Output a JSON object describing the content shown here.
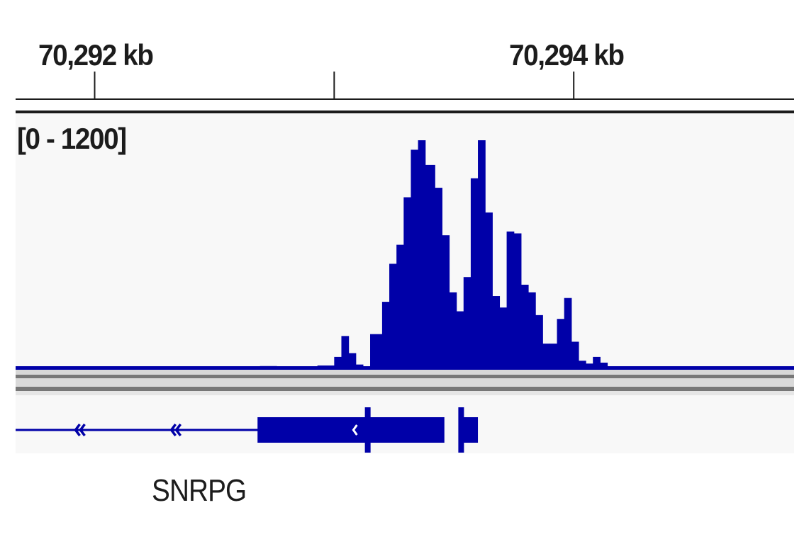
{
  "ruler": {
    "labels": [
      {
        "kb": 70292,
        "text": "70,292 kb"
      },
      {
        "kb": 70294,
        "text": "70,294 kb"
      }
    ],
    "ticks_kb": [
      70292,
      70293,
      70294
    ]
  },
  "track": {
    "range_label": "[0 - 1200]",
    "color": "#0000a8"
  },
  "gene": {
    "name": "SNRPG",
    "color": "#0000a8"
  },
  "chart_data": {
    "type": "area",
    "title": "",
    "xlabel": "",
    "ylabel": "",
    "x_unit": "kb",
    "xlim": [
      70291.67,
      70294.92
    ],
    "ylim": [
      0,
      1200
    ],
    "x": [
      70292.93,
      70293.0,
      70293.03,
      70293.06,
      70293.09,
      70293.12,
      70293.15,
      70293.2,
      70293.23,
      70293.26,
      70293.29,
      70293.32,
      70293.35,
      70293.38,
      70293.42,
      70293.45,
      70293.48,
      70293.51,
      70293.54,
      70293.57,
      70293.6,
      70293.63,
      70293.66,
      70293.69,
      70293.72,
      70293.75,
      70293.78,
      70293.81,
      70293.84,
      70293.87,
      70293.9,
      70293.93,
      70293.96,
      70293.99,
      70294.02,
      70294.05,
      70294.08,
      70294.11,
      70294.14,
      70294.17,
      70294.2,
      70294.24,
      70294.27,
      70294.3,
      70294.33
    ],
    "values": [
      15,
      60,
      170,
      80,
      20,
      10,
      180,
      350,
      550,
      650,
      900,
      1150,
      1200,
      1070,
      950,
      700,
      400,
      300,
      480,
      1000,
      1200,
      820,
      380,
      320,
      720,
      710,
      440,
      400,
      280,
      130,
      130,
      260,
      370,
      140,
      40,
      25,
      60,
      30,
      10,
      5,
      3,
      3,
      3,
      3,
      3
    ],
    "gene_model": {
      "name": "SNRPG",
      "strand": "-",
      "line_kb": [
        70291.67,
        70293.4
      ],
      "exons_kb": [
        [
          70292.68,
          70293.14
        ],
        [
          70293.14,
          70293.46
        ],
        [
          70293.53,
          70293.6
        ]
      ],
      "exon_boundaries_kb": [
        70293.14,
        70293.53
      ]
    }
  }
}
